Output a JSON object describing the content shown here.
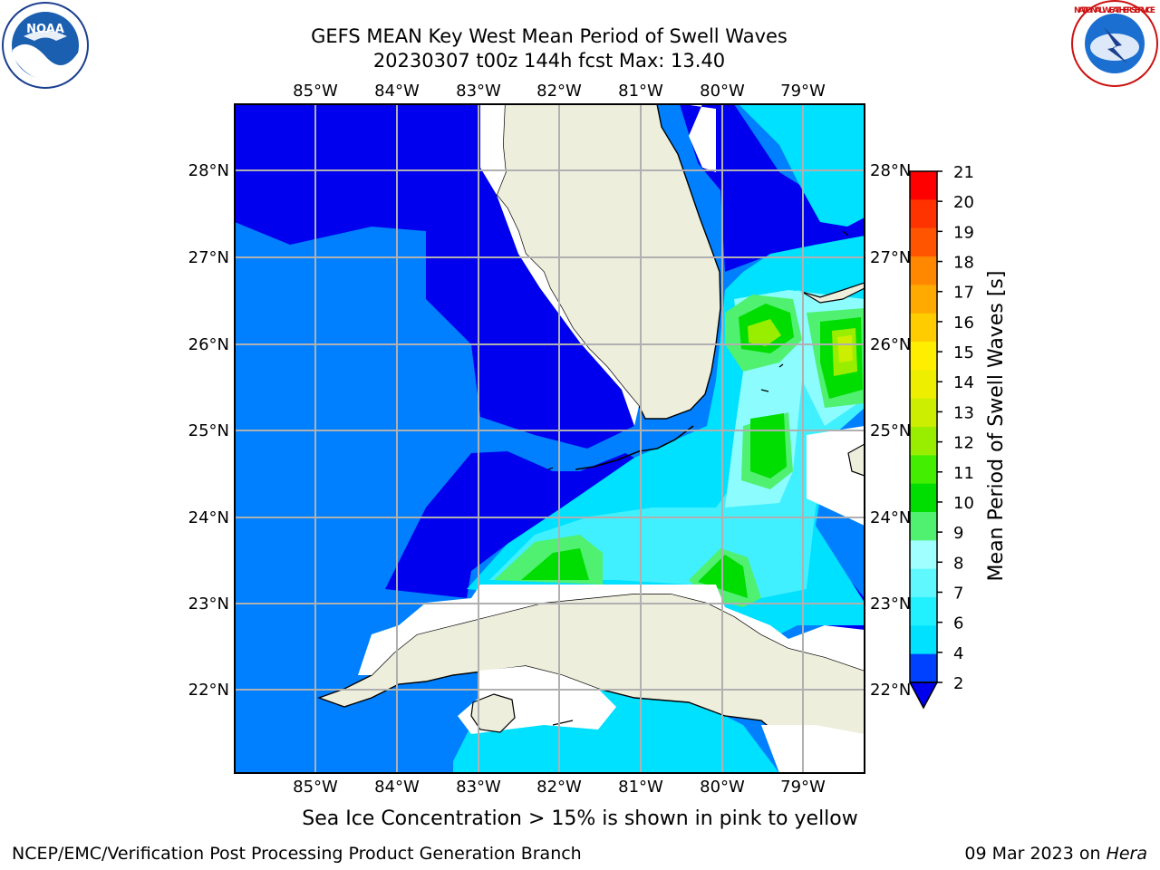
{
  "header": {
    "title_line1": "GEFS MEAN Key West Mean Period of Swell Waves",
    "title_line2": "20230307 t00z 144h fcst   Max: 13.40"
  },
  "map": {
    "lon_labels": [
      "85°W",
      "84°W",
      "83°W",
      "82°W",
      "81°W",
      "80°W",
      "79°W"
    ],
    "lat_labels": [
      "28°N",
      "27°N",
      "26°N",
      "25°N",
      "24°N",
      "23°N",
      "22°N"
    ],
    "colors": {
      "land": "#eeeedd",
      "grid": "#b0b0b0",
      "coast": "#000000"
    }
  },
  "colorbar": {
    "label": "Mean Period of Swell Waves [s]",
    "ticks": [
      "2",
      "4",
      "6",
      "7",
      "8",
      "9",
      "10",
      "11",
      "12",
      "13",
      "14",
      "15",
      "16",
      "17",
      "18",
      "19",
      "20",
      "21"
    ],
    "colors": [
      "#0040ff",
      "#00e0ff",
      "#20f0ff",
      "#60f8ff",
      "#a0ffff",
      "#50f070",
      "#00dd00",
      "#44ee00",
      "#99ee00",
      "#ccee00",
      "#eeee00",
      "#ffee00",
      "#ffcc00",
      "#ffaa00",
      "#ff8800",
      "#ff5500",
      "#ff3300",
      "#ff0000"
    ],
    "under_color": "#0000ee"
  },
  "caption": "Sea Ice Concentration > 15% is shown in pink to yellow",
  "footer": {
    "left": "NCEP/EMC/Verification Post Processing Product Generation Branch",
    "right_prefix": "09 Mar 2023 on ",
    "right_host": "Hera"
  },
  "logos": {
    "left_text": "NOAA",
    "right_text": "NATIONAL WEATHER SERVICE"
  }
}
